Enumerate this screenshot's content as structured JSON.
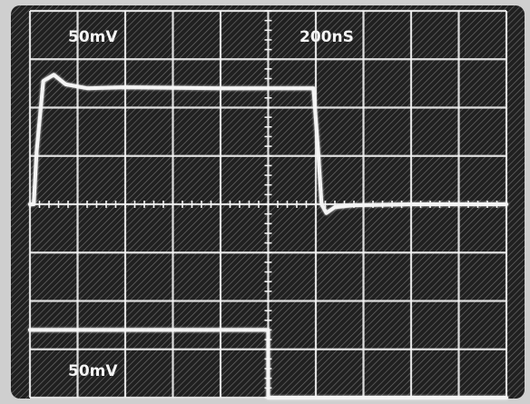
{
  "chart_data": {
    "type": "line",
    "title": "",
    "xlabel": "",
    "ylabel": "",
    "grid": true,
    "legend": "none",
    "x_divisions": 10,
    "y_divisions": 8,
    "xlim": [
      0,
      10
    ],
    "ylim": [
      -4,
      4
    ],
    "channel_labels": {
      "top_left": "50mV",
      "top_right": "200nS",
      "bottom_left": "50mV"
    },
    "series": [
      {
        "x": [
          0,
          0.08,
          0.14,
          0.28,
          0.5,
          0.75,
          1.2,
          2,
          4,
          5.95,
          6.05,
          6.12,
          6.22,
          6.4,
          6.8,
          8,
          10
        ],
        "y": [
          0,
          0,
          1.1,
          2.55,
          2.68,
          2.48,
          2.4,
          2.42,
          2.4,
          2.4,
          1.1,
          0,
          -0.18,
          -0.06,
          -0.02,
          0,
          0
        ],
        "color": "#f4f4f4"
      },
      {
        "x": [
          0,
          5.0,
          5.0,
          10
        ],
        "y": [
          -2.6,
          -2.6,
          -4.0,
          -4.0
        ],
        "color": "#f4f4f4"
      }
    ]
  }
}
